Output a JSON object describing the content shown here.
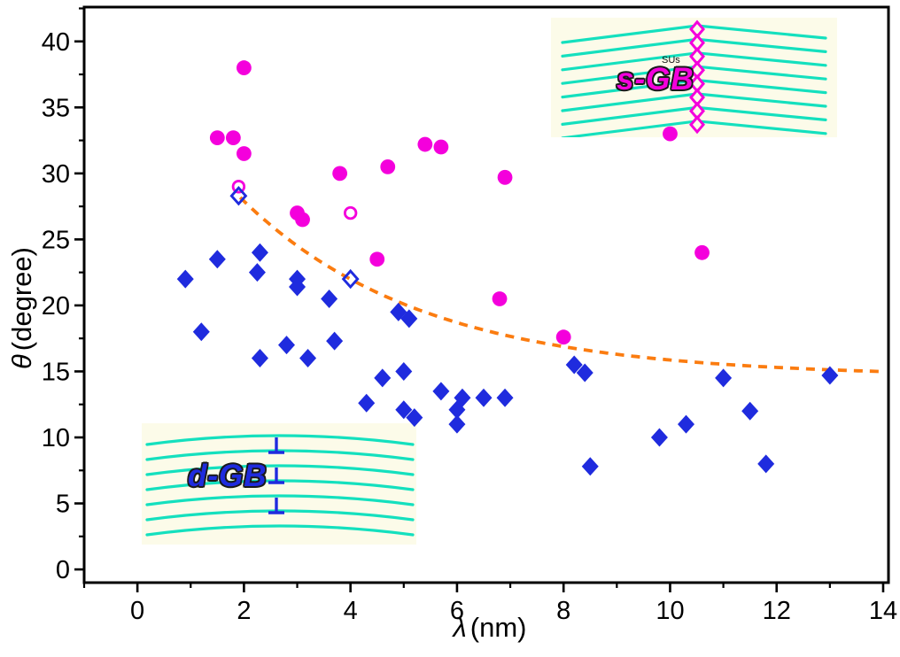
{
  "figure": {
    "xlabel": {
      "symbol": "λ",
      "rest": "(nm)"
    },
    "ylabel": {
      "symbol": "θ",
      "rest": "(degree)"
    },
    "insets": {
      "s_gb": {
        "label": "s-GB",
        "annotation": "SUs"
      },
      "d_gb": {
        "label": "d-GB"
      }
    }
  },
  "colors": {
    "s_gb_magenta": "#F400DC",
    "d_gb_blue": "#1F2BDE",
    "fit_orange": "#FB7C10",
    "lattice_cyan": "#14E0BE",
    "inset_background": "#FCFBE9",
    "axis_black": "#000000"
  },
  "chart_data": {
    "type": "scatter",
    "title": "",
    "xlabel": "λ (nm)",
    "ylabel": "θ (degree)",
    "xlim": [
      -1,
      14.1
    ],
    "ylim": [
      -1,
      42.6
    ],
    "xticks": [
      0,
      2,
      4,
      6,
      8,
      10,
      12,
      14
    ],
    "yticks": [
      0,
      5,
      10,
      15,
      20,
      25,
      30,
      35,
      40
    ],
    "x_minor_step": 1,
    "y_minor_step": 2.5,
    "grid": false,
    "legend": "none (series labeled by inset illustrations s-GB and d-GB)",
    "series": [
      {
        "name": "s-GB",
        "marker": "circle",
        "fill": "filled",
        "color": "#F400DC",
        "points": [
          [
            1.5,
            32.7
          ],
          [
            1.8,
            32.7
          ],
          [
            2.0,
            38.0
          ],
          [
            2.0,
            31.5
          ],
          [
            3.0,
            27.0
          ],
          [
            3.1,
            26.5
          ],
          [
            3.8,
            30.0
          ],
          [
            4.5,
            23.5
          ],
          [
            4.7,
            30.5
          ],
          [
            5.4,
            32.2
          ],
          [
            5.7,
            32.0
          ],
          [
            6.8,
            20.5
          ],
          [
            6.9,
            29.7
          ],
          [
            8.0,
            17.6
          ],
          [
            10.0,
            33.0
          ],
          [
            10.6,
            24.0
          ]
        ]
      },
      {
        "name": "s-GB-open",
        "marker": "circle",
        "fill": "open",
        "color": "#F400DC",
        "points": [
          [
            1.9,
            29.0
          ],
          [
            4.0,
            27.0
          ]
        ]
      },
      {
        "name": "d-GB",
        "marker": "diamond",
        "fill": "filled",
        "color": "#1F2BDE",
        "points": [
          [
            0.9,
            22.0
          ],
          [
            1.2,
            18.0
          ],
          [
            1.5,
            23.5
          ],
          [
            2.25,
            22.5
          ],
          [
            2.3,
            24.0
          ],
          [
            2.3,
            16.0
          ],
          [
            2.8,
            17.0
          ],
          [
            3.0,
            22.0
          ],
          [
            3.0,
            21.4
          ],
          [
            3.2,
            16.0
          ],
          [
            3.6,
            20.5
          ],
          [
            3.7,
            17.3
          ],
          [
            4.3,
            12.6
          ],
          [
            4.6,
            14.5
          ],
          [
            4.9,
            19.5
          ],
          [
            5.1,
            19.0
          ],
          [
            5.0,
            15.0
          ],
          [
            5.0,
            12.1
          ],
          [
            5.2,
            11.5
          ],
          [
            5.7,
            13.5
          ],
          [
            6.0,
            12.1
          ],
          [
            6.0,
            11.0
          ],
          [
            6.1,
            13.0
          ],
          [
            6.5,
            13.0
          ],
          [
            6.9,
            13.0
          ],
          [
            8.2,
            15.5
          ],
          [
            8.4,
            14.9
          ],
          [
            8.5,
            7.8
          ],
          [
            9.8,
            10.0
          ],
          [
            10.3,
            11.0
          ],
          [
            11.0,
            14.5
          ],
          [
            11.5,
            12.0
          ],
          [
            11.8,
            8.0
          ],
          [
            13.0,
            14.7
          ]
        ]
      },
      {
        "name": "d-GB-open",
        "marker": "diamond",
        "fill": "open",
        "color": "#1F2BDE",
        "points": [
          [
            1.9,
            28.3
          ],
          [
            4.0,
            22.0
          ]
        ]
      }
    ],
    "fit_curve": {
      "style": "dashed",
      "color": "#FB7C10",
      "model": "theta = y0 + A * exp(-(lambda - x0) / tau)",
      "params": {
        "y0": 14.6,
        "A": 13.7,
        "x0": 1.9,
        "tau": 3.4
      },
      "x_range": [
        1.93,
        14.08
      ]
    }
  }
}
